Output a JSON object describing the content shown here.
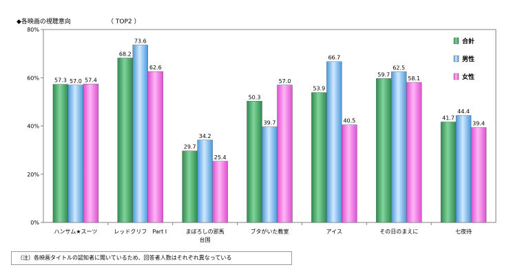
{
  "chart_data": {
    "type": "bar",
    "title": "◆各映画の視聴意向",
    "subtitle": "（ TOP2 ）",
    "xlabel": "",
    "ylabel": "",
    "ylim": [
      0,
      80
    ],
    "yticks": [
      "0%",
      "20%",
      "40%",
      "60%",
      "80%"
    ],
    "ytick_values": [
      0,
      20,
      40,
      60,
      80
    ],
    "grid": false,
    "legend_position": "top-right",
    "categories": [
      [
        "ハンサム★スーツ"
      ],
      [
        "レッドクリフ　Part Ⅰ"
      ],
      [
        "まぼろしの邪馬",
        "台国"
      ],
      [
        "ブタがいた教室"
      ],
      [
        "アイス"
      ],
      [
        "その日のまえに"
      ],
      [
        "七夜待"
      ]
    ],
    "series": [
      {
        "name": "合計",
        "color": "#4caf6e",
        "values": [
          57.3,
          68.2,
          29.7,
          50.3,
          53.9,
          59.7,
          41.7
        ]
      },
      {
        "name": "男性",
        "color": "#6fb8f0",
        "values": [
          57.0,
          73.6,
          34.2,
          39.7,
          66.7,
          62.5,
          44.4
        ]
      },
      {
        "name": "女性",
        "color": "#f06ee0",
        "values": [
          57.4,
          62.6,
          25.4,
          57.0,
          40.5,
          58.1,
          39.4
        ]
      }
    ]
  },
  "note": "（注）各映画タイトルの認知者に聞いているため、回答者人数はそれぞれ異なっている"
}
